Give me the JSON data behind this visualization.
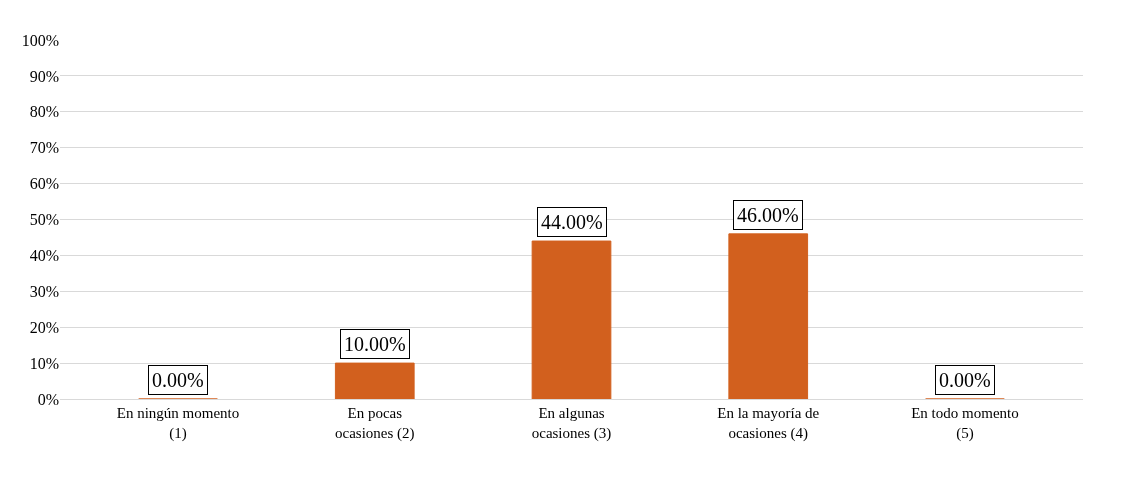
{
  "chart_data": {
    "type": "bar",
    "categories": [
      "En ningún momento (1)",
      "En pocas ocasiones (2)",
      "En algunas ocasiones (3)",
      "En la mayoría de ocasiones (4)",
      "En todo momento (5)"
    ],
    "values": [
      0,
      10,
      44,
      46,
      0
    ],
    "value_labels": [
      "0.00%",
      "10.00%",
      "44.00%",
      "46.00%",
      "0.00%"
    ],
    "color": "#d2601e",
    "ylim": [
      0,
      100
    ],
    "yticks": [
      {
        "value": 0,
        "label": "0%"
      },
      {
        "value": 10,
        "label": "10%"
      },
      {
        "value": 20,
        "label": "20%"
      },
      {
        "value": 30,
        "label": "30%"
      },
      {
        "value": 40,
        "label": "40%"
      },
      {
        "value": 50,
        "label": "50%"
      },
      {
        "value": 60,
        "label": "60%"
      },
      {
        "value": 70,
        "label": "70%"
      },
      {
        "value": 80,
        "label": "80%"
      },
      {
        "value": 90,
        "label": "90%"
      },
      {
        "value": 100,
        "label": "100%"
      }
    ],
    "grid": "y"
  }
}
